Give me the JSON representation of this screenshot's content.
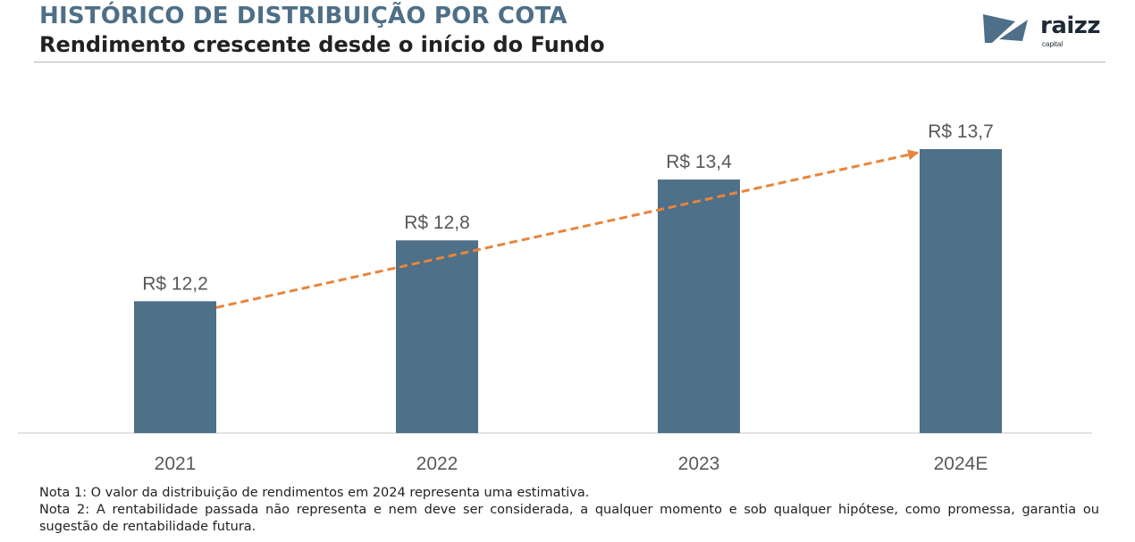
{
  "header": {
    "title": "HISTÓRICO DE DISTRIBUIÇÃO POR COTA",
    "subtitle": "Rendimento crescente desde o início do Fundo"
  },
  "logo": {
    "word": "raizz",
    "sub": "capital"
  },
  "chart_data": {
    "type": "bar",
    "title": "HISTÓRICO DE DISTRIBUIÇÃO POR COTA",
    "subtitle": "Rendimento crescente desde o início do Fundo",
    "categories": [
      "2021",
      "2022",
      "2023",
      "2024E"
    ],
    "values": [
      12.2,
      12.8,
      13.4,
      13.7
    ],
    "data_labels": [
      "R$ 12,2",
      "R$ 12,8",
      "R$ 13,4",
      "R$ 13,7"
    ],
    "xlabel": "",
    "ylabel": "",
    "ylim": [
      10.9,
      13.7
    ],
    "grid": false,
    "annotation": "orange dashed trend arrow from 2021 to 2024E",
    "colors": {
      "bar": "#4e7088",
      "trend": "#e8853c",
      "axis": "#d9d9d9",
      "label": "#595959"
    }
  },
  "notes": [
    "Nota 1: O valor da distribuição de rendimentos em 2024 representa uma estimativa.",
    "Nota 2: A rentabilidade passada não representa e nem deve ser considerada, a qualquer momento e sob qualquer hipótese, como promessa, garantia ou sugestão de rentabilidade futura."
  ]
}
